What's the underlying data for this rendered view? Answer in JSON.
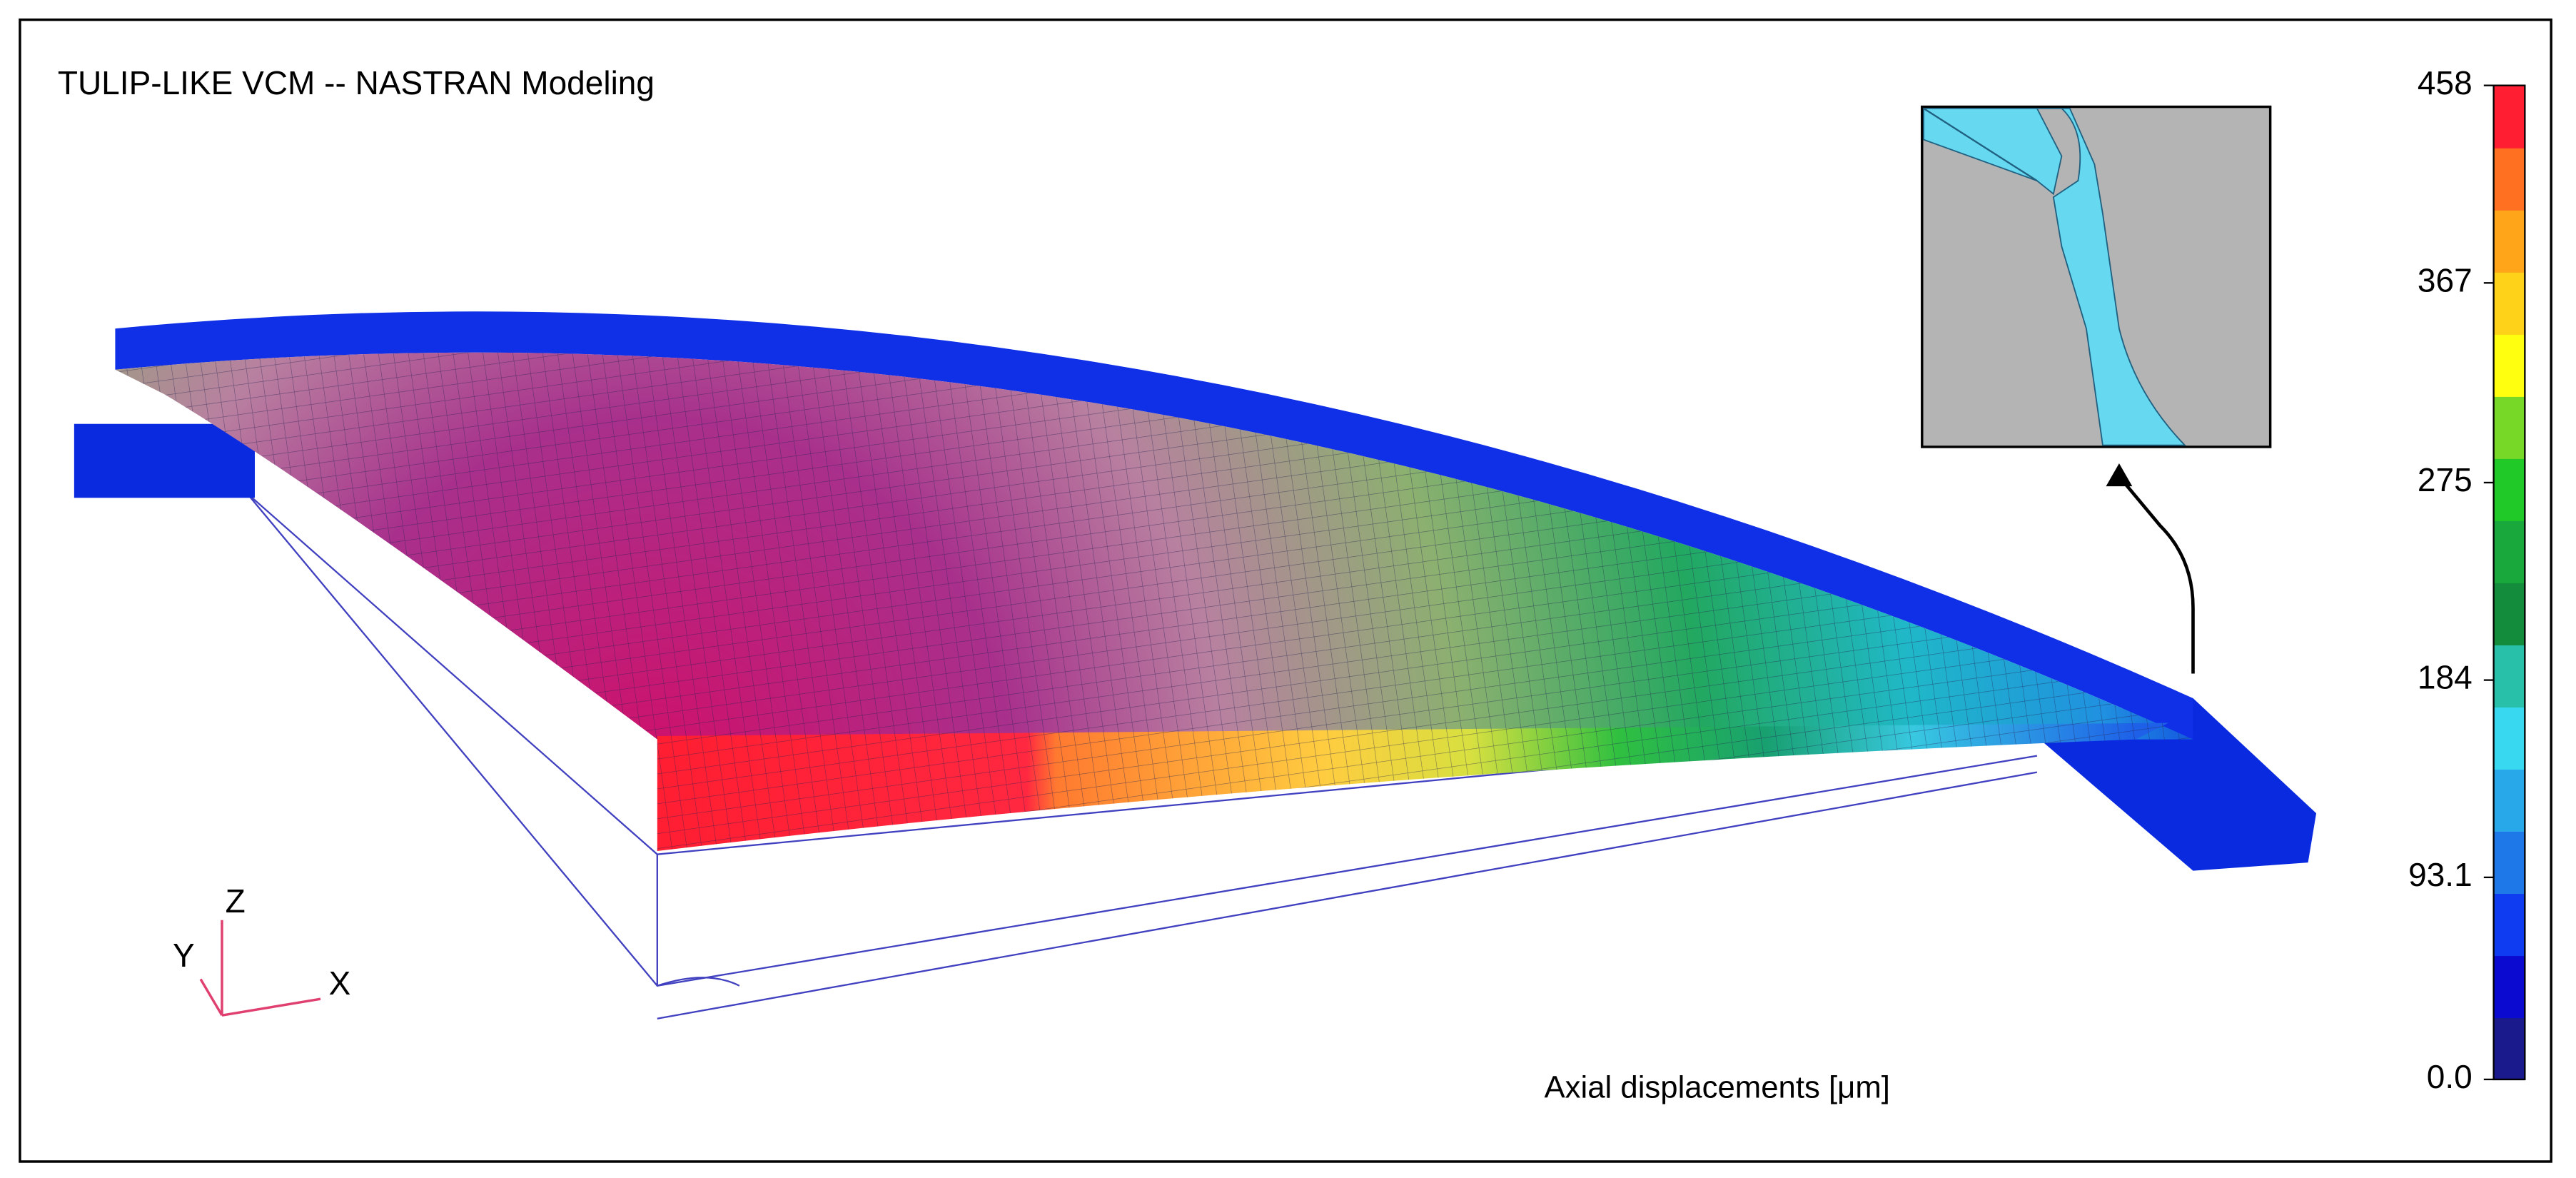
{
  "title": "TULIP-LIKE VCM -- NASTRAN Modeling",
  "axes_triad": {
    "z": "Z",
    "y": "Y",
    "x": "X"
  },
  "colorbar": {
    "title": "Axial displacements  [μm]",
    "lim": [
      0,
      458
    ],
    "ticks": [
      {
        "value": 0,
        "label": "0.0"
      },
      93.1,
      184,
      275,
      367,
      458
    ],
    "colors": [
      "#1a1a8c",
      "#0a0ad0",
      "#0f3cf0",
      "#1e78e8",
      "#28a8e8",
      "#38d8f0",
      "#28c0a8",
      "#138c3c",
      "#18a83c",
      "#20c828",
      "#78d828",
      "#ffff10",
      "#ffd21a",
      "#ffa51a",
      "#ff7020",
      "#ff1e32"
    ]
  }
}
